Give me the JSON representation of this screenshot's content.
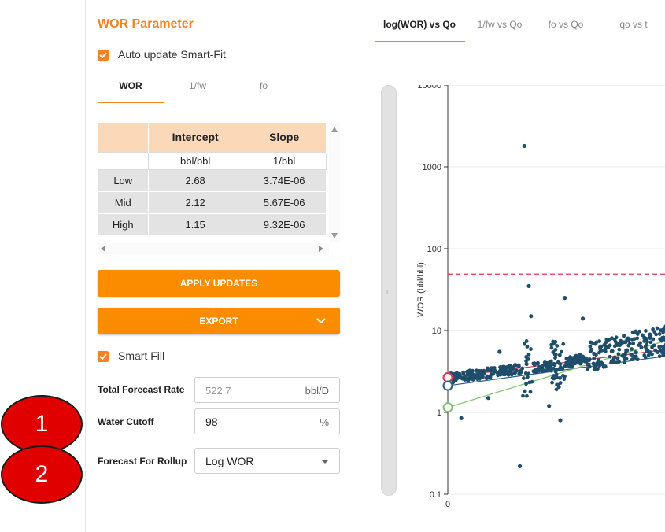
{
  "left_panel": {
    "title": "WOR Parameter",
    "auto_update_label": "Auto update Smart-Fit",
    "tabs": [
      {
        "label": "WOR",
        "active": true
      },
      {
        "label": "1/fw",
        "active": false
      },
      {
        "label": "fo",
        "active": false
      }
    ],
    "table": {
      "headers": [
        "",
        "Intercept",
        "Slope"
      ],
      "units": [
        "",
        "bbl/bbl",
        "1/bbl"
      ],
      "rows": [
        {
          "label": "Low",
          "intercept": "2.68",
          "slope": "3.74E-06"
        },
        {
          "label": "Mid",
          "intercept": "2.12",
          "slope": "5.67E-06"
        },
        {
          "label": "High",
          "intercept": "1.15",
          "slope": "9.32E-06"
        }
      ]
    },
    "apply_button": "APPLY UPDATES",
    "export_button": "EXPORT",
    "smart_fill_label": "Smart Fill",
    "total_forecast_rate": {
      "label": "Total Forecast Rate",
      "value": "522.7",
      "unit": "bbl/D"
    },
    "water_cutoff": {
      "label": "Water Cutoff",
      "value": "98",
      "unit": "%"
    },
    "forecast_for_rollup": {
      "label": "Forecast For Rollup",
      "value": "Log WOR"
    }
  },
  "badges": [
    "1",
    "2"
  ],
  "chart_tabs": [
    {
      "label": "log(WOR) vs Qo",
      "active": true
    },
    {
      "label": "1/fw vs Qo",
      "active": false
    },
    {
      "label": "fo vs Qo",
      "active": false
    },
    {
      "label": "qo vs t",
      "active": false
    }
  ],
  "colors": {
    "accent": "#f5821f",
    "button": "#fb8c00",
    "badge": "#e00000",
    "points": "#1f4e6b",
    "cutoff_line": "#e0334d"
  },
  "chart_data": {
    "type": "scatter",
    "ylabel": "WOR (bbl/bbl)",
    "xlabel": "",
    "yscale": "log",
    "ylim": [
      0.1,
      10000
    ],
    "y_ticks": [
      "10000",
      "1000",
      "100",
      "10",
      "1",
      "0.1"
    ],
    "x_ticks": [
      "0"
    ],
    "grid": true,
    "cutoff_y": 49,
    "lines": [
      {
        "name": "Low",
        "color": "#e0334d",
        "start_y": 2.68
      },
      {
        "name": "Mid",
        "color": "#2e5c8a",
        "start_y": 2.12
      },
      {
        "name": "High",
        "color": "#7cc46b",
        "start_y": 1.15
      }
    ],
    "points_approx": [
      [
        0.02,
        2.6
      ],
      [
        0.05,
        2.7
      ],
      [
        0.1,
        2.9
      ],
      [
        0.15,
        3.2
      ],
      [
        0.2,
        3.4
      ],
      [
        0.25,
        3.6
      ],
      [
        0.3,
        3.8
      ],
      [
        0.35,
        3.9
      ],
      [
        0.4,
        4.0
      ],
      [
        0.45,
        3.7
      ],
      [
        0.5,
        3.5
      ],
      [
        0.55,
        4.5
      ],
      [
        0.6,
        4.8
      ],
      [
        0.65,
        5.2
      ],
      [
        0.7,
        6.0
      ],
      [
        0.75,
        7.0
      ],
      [
        0.8,
        8.0
      ],
      [
        0.06,
        0.85
      ],
      [
        0.18,
        1.5
      ],
      [
        0.23,
        5.5
      ],
      [
        0.34,
        1800
      ],
      [
        0.32,
        0.22
      ],
      [
        0.36,
        35
      ],
      [
        0.37,
        15
      ],
      [
        0.52,
        25
      ],
      [
        0.45,
        1.2
      ],
      [
        0.5,
        0.8
      ],
      [
        0.6,
        14
      ]
    ]
  }
}
